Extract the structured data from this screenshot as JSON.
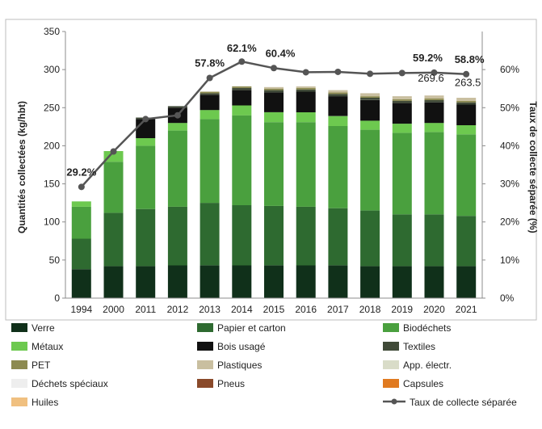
{
  "chart_data": {
    "type": "bar",
    "stacked": true,
    "categories": [
      "1994",
      "2000",
      "2011",
      "2012",
      "2013",
      "2014",
      "2015",
      "2016",
      "2017",
      "2018",
      "2019",
      "2020",
      "2021"
    ],
    "ylabel": "Quantités collectées (kg/hbt)",
    "y2label": "Taux de collecte séparée (%)",
    "ylim": [
      0,
      350
    ],
    "yticks": [
      "0",
      "50",
      "100",
      "150",
      "200",
      "250",
      "300",
      "350"
    ],
    "y2lim": [
      0,
      70
    ],
    "y2ticks": [
      "0%",
      "10%",
      "20%",
      "30%",
      "40%",
      "50%",
      "60%"
    ],
    "grid": false,
    "legend_position": "bottom",
    "series": [
      {
        "name": "Verre",
        "color": "#10301a",
        "values": [
          38,
          42,
          42,
          43,
          43,
          43,
          43,
          43,
          43,
          42,
          42,
          42,
          42
        ]
      },
      {
        "name": "Papier et carton",
        "color": "#2e6a30",
        "values": [
          40,
          70,
          75,
          77,
          82,
          79,
          78,
          77,
          75,
          73,
          68,
          68,
          66
        ]
      },
      {
        "name": "Biodéchets",
        "color": "#4aa03e",
        "values": [
          42,
          67,
          83,
          100,
          110,
          118,
          110,
          111,
          108,
          106,
          107,
          108,
          107
        ]
      },
      {
        "name": "Métaux",
        "color": "#6dc94f",
        "values": [
          7,
          14,
          10,
          10,
          12,
          13,
          13,
          13,
          13,
          12,
          12,
          12,
          12
        ]
      },
      {
        "name": "Bois usagé",
        "color": "#111111",
        "values": [
          0,
          0,
          25,
          20,
          20,
          20,
          26,
          27,
          26,
          27,
          27,
          27,
          27
        ]
      },
      {
        "name": "Textiles",
        "color": "#404a38",
        "values": [
          0,
          0,
          2,
          2,
          2,
          3,
          3,
          3,
          3,
          3,
          3,
          3,
          3
        ]
      },
      {
        "name": "PET",
        "color": "#8c8a50",
        "values": [
          0,
          0,
          0,
          0,
          2,
          2,
          2,
          2,
          2,
          2,
          2,
          2,
          2
        ]
      },
      {
        "name": "Plastiques",
        "color": "#c9bfa0",
        "values": [
          0,
          0,
          0,
          0,
          0,
          0,
          2,
          2,
          3,
          4,
          4,
          4,
          4
        ]
      },
      {
        "name": "App. électr.",
        "color": "#d9dcc8",
        "values": [
          0,
          0,
          0,
          0,
          0,
          0,
          0,
          0,
          0,
          0,
          0,
          0,
          0
        ]
      },
      {
        "name": "Déchets spéciaux",
        "color": "#eeeeee",
        "values": [
          0,
          0,
          0,
          0,
          0,
          0,
          0,
          0,
          0,
          0,
          0,
          0,
          0
        ]
      },
      {
        "name": "Pneus",
        "color": "#8a4a2a",
        "values": [
          0,
          0,
          0,
          0,
          0,
          0,
          0,
          0,
          0,
          0,
          0,
          0,
          0
        ]
      },
      {
        "name": "Capsules",
        "color": "#e07a20",
        "values": [
          0,
          0,
          0,
          0,
          0,
          0,
          0,
          0,
          0,
          0,
          0,
          0,
          0
        ]
      },
      {
        "name": "Huiles",
        "color": "#f0c080",
        "values": [
          0,
          0,
          0,
          0,
          0,
          0,
          0,
          0,
          0,
          0,
          0,
          0,
          0
        ]
      }
    ],
    "line": {
      "name": "Taux de collecte séparée",
      "color": "#555555",
      "values": [
        29.2,
        38.5,
        47,
        48,
        57.8,
        62.1,
        60.4,
        59.3,
        59.4,
        58.9,
        59.1,
        59.2,
        58.8
      ]
    },
    "rate_labels": [
      {
        "index": 0,
        "text": "29.2%"
      },
      {
        "index": 4,
        "text": "57.8%"
      },
      {
        "index": 5,
        "text": "62.1%"
      },
      {
        "index": 6,
        "text": "60.4%"
      },
      {
        "index": 11,
        "text": "59.2%"
      },
      {
        "index": 12,
        "text": "58.8%"
      }
    ],
    "total_labels": [
      {
        "index": 11,
        "text": "269.6",
        "value": 269.6
      },
      {
        "index": 12,
        "text": "263.5",
        "value": 263.5
      }
    ]
  }
}
